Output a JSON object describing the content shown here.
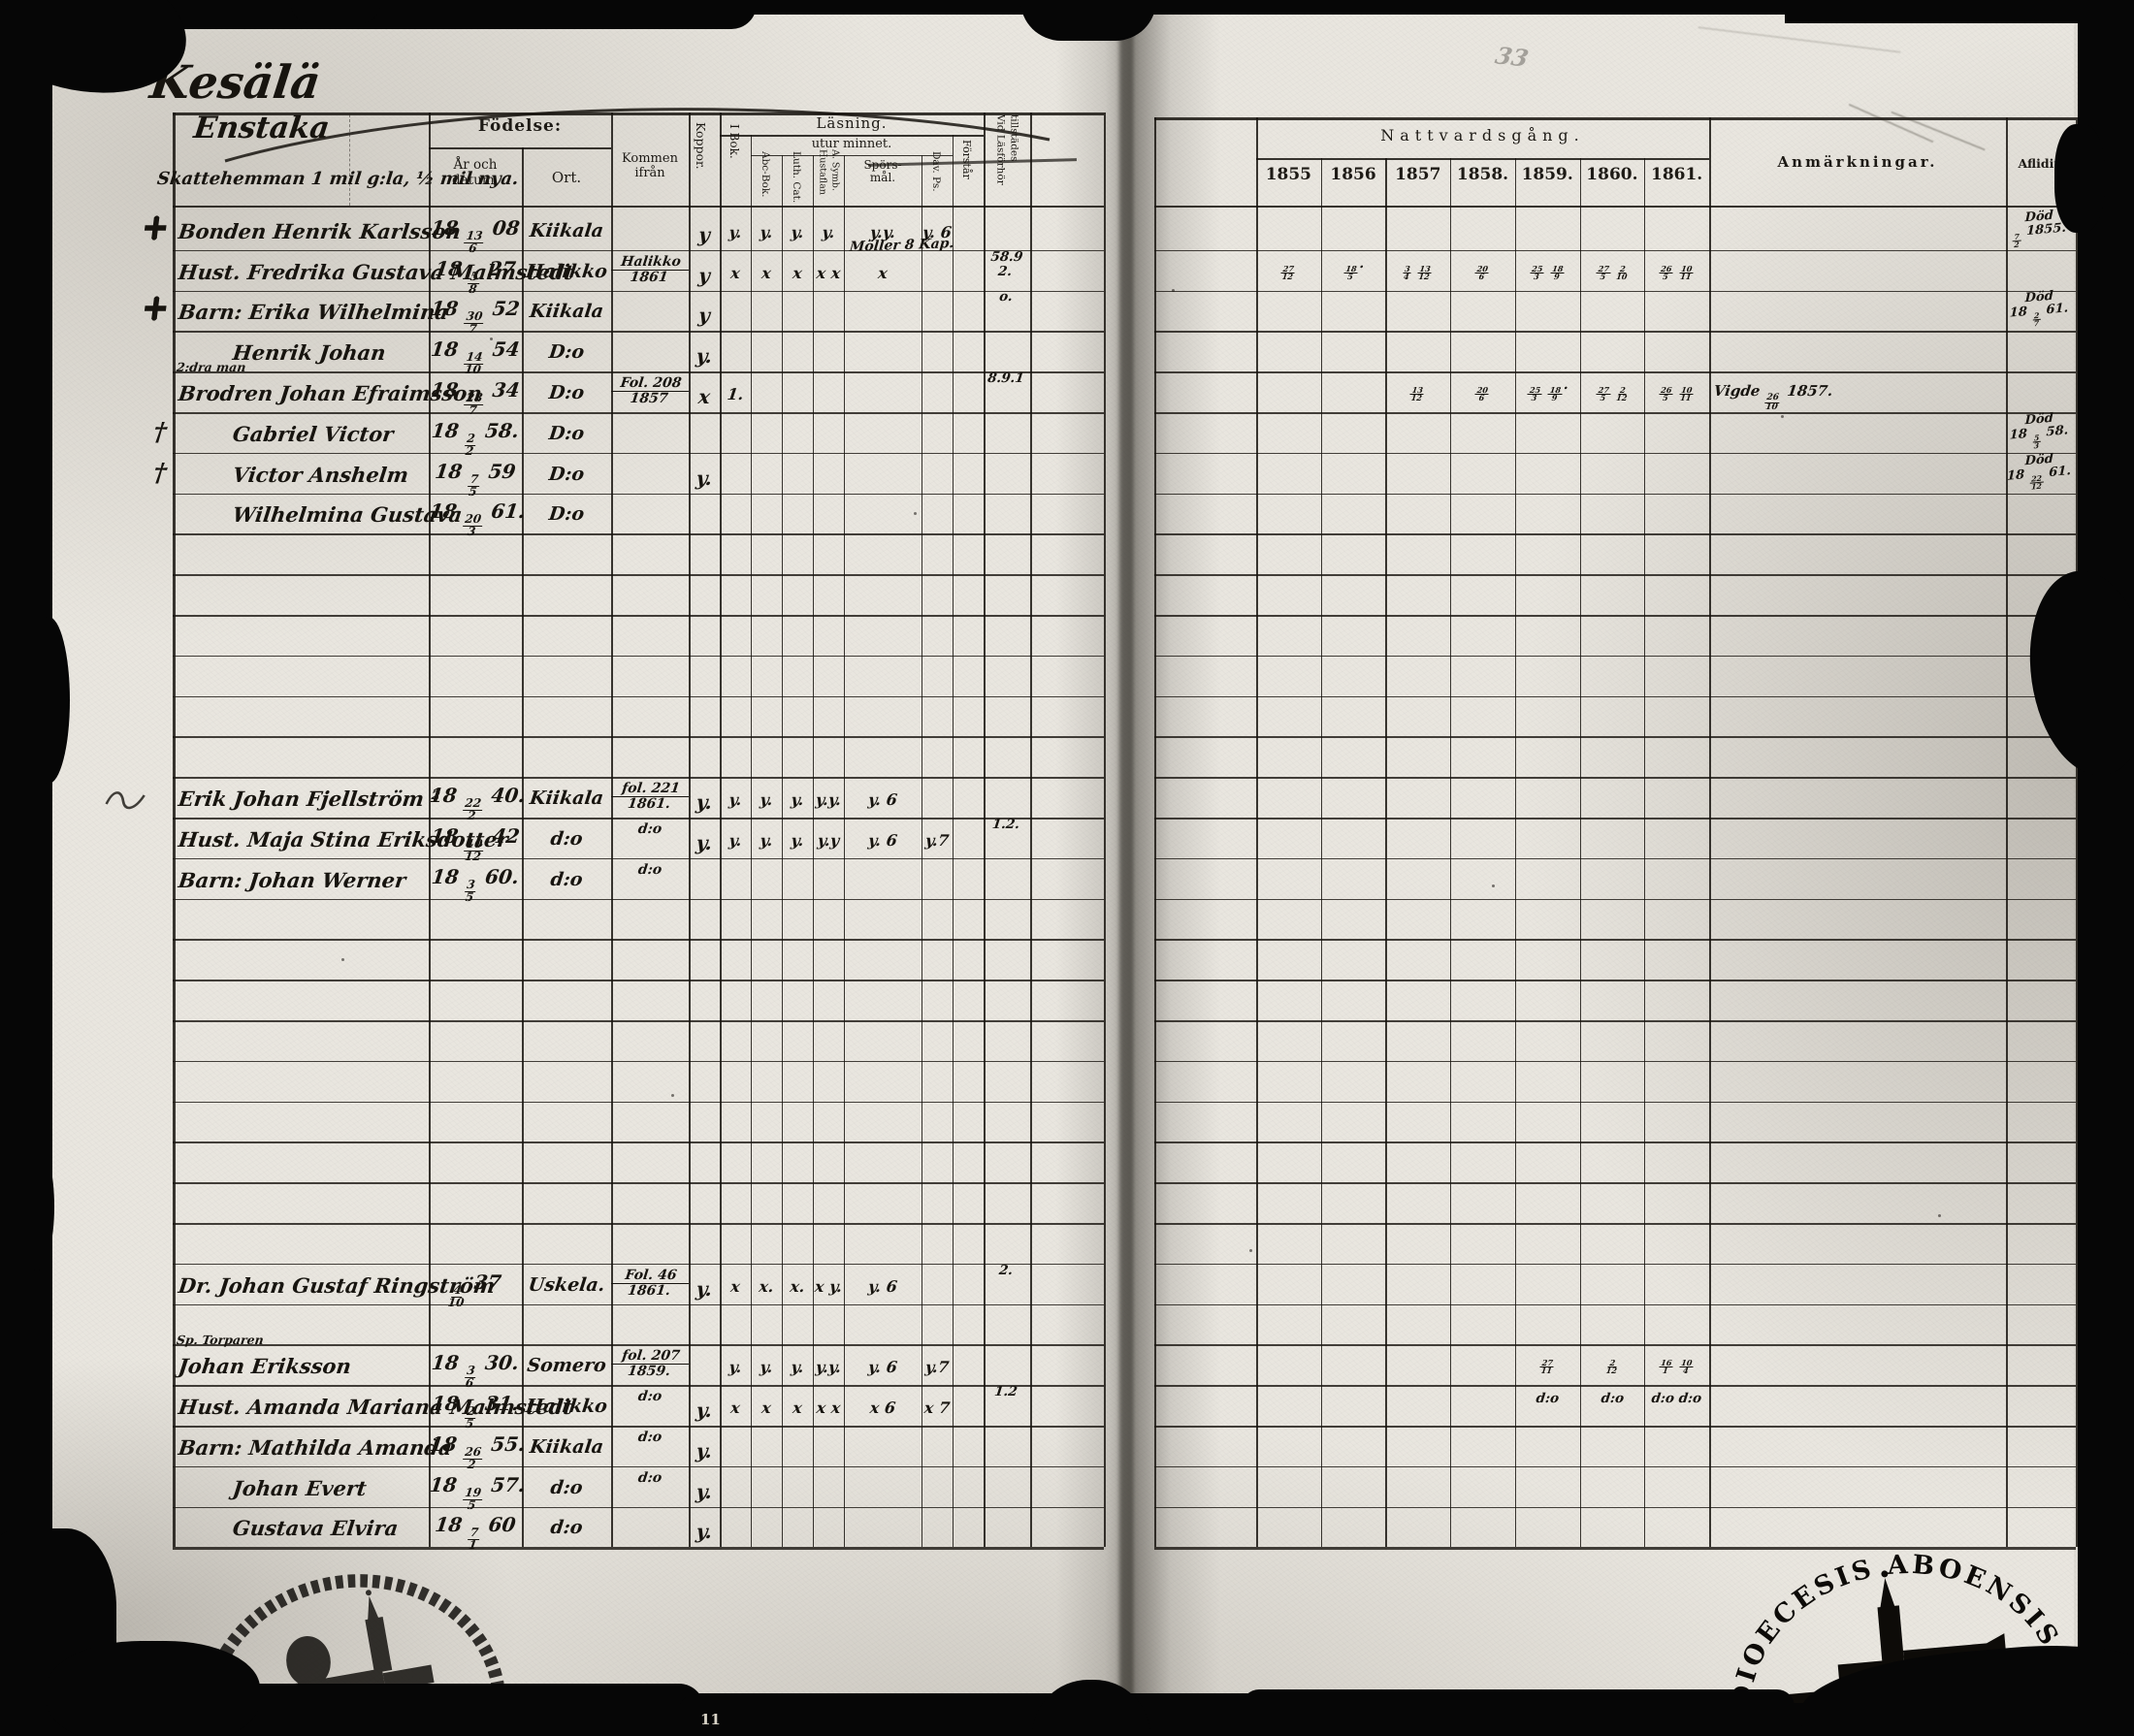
{
  "page": {
    "title": "Kesälä",
    "corner_mark": "33",
    "bottom_mark": "11",
    "section_heading": "Enstaka",
    "section_subheading": "Skattehemman 1 mil g:la, ½ mil nya."
  },
  "headers": {
    "fodelse": "Födelse:",
    "ar_och_datum": "År och datum.",
    "ort": "Ort.",
    "kommen_ifran": "Kommen ifrån",
    "koppor": "Koppor.",
    "lasning": "Läsning.",
    "utur_minnet": "utur minnet.",
    "i_bok": "I Bok.",
    "abc_bok": "Abc-Bok.",
    "luth_cat": "Luth. Cat.",
    "a_symb": "A. Symb.",
    "hustaflan": "Hustaflan",
    "sporsmal_1": "Spörs-",
    "sporsmal_2": "mål.",
    "dav_ps": "Dav. Ps.",
    "forstar": "Förstår",
    "vid_lasforhor_1": "Vid Läsförhör",
    "vid_lasforhor_2": "tillstädes",
    "nattvardsgang": "Nattvardsgång.",
    "years": [
      "1855",
      "1856",
      "1857",
      "1858.",
      "1859.",
      "1860.",
      "1861."
    ],
    "anmarkningar": "Anmärkningar.",
    "aflidit": "Aflidit."
  },
  "rows": [
    {
      "line": 0,
      "margin": "maltese-cross",
      "label": "Bonden",
      "name": "Henrik Karlsson",
      "date": "18 13/6 08",
      "ort": "Kiikala",
      "reading": {
        "koppor": "y",
        "ibok": "y.",
        "abc": "y.",
        "luth": "y.",
        "asymb": "y.",
        "spors": "y.y.",
        "davps": "y. 6"
      },
      "aflidit": "Död|7/2 1855."
    },
    {
      "line": 1,
      "label": "Hust.",
      "name": "Fredrika Gustava Malmstedt",
      "date": "18 5/8 27",
      "ort": "Halikko",
      "kommen": "Halikko|1861",
      "reading": {
        "koppor": "y",
        "ibok": "x",
        "abc": "x",
        "luth": "x",
        "asymb": "x x",
        "spors": "x",
        "note": "Möller 8 Kap."
      },
      "vidlas": "58.9|2.",
      "natt": [
        "27/12",
        "18/5.",
        "3/4 13/12",
        "20/6",
        "25/3 18/9",
        "27/5 2/10",
        "26/5 10/11"
      ]
    },
    {
      "line": 2,
      "margin": "maltese-cross",
      "label": "Barn:",
      "name": "Erika Wilhelmina",
      "date": "18 30/7 52",
      "ort": "Kiikala",
      "reading": {
        "koppor": "y"
      },
      "vidlas": "o.",
      "aflidit": "Död|18 2/7 61."
    },
    {
      "line": 3,
      "name": "Henrik Johan",
      "date": "18 14/10 54",
      "ort": "D:o",
      "reading": {
        "koppor": "y."
      }
    },
    {
      "line": 4,
      "above": "2:dra man",
      "label": "Brodren",
      "name": "Johan Efraimsson",
      "date": "18 28/7 34",
      "ort": "D:o",
      "kommen": "Fol. 208|1857",
      "reading": {
        "koppor": "x",
        "ibok": "1."
      },
      "vidlas": "8.9.1",
      "natt": [
        "",
        "",
        "13/12",
        "20/6",
        "25/3 18/9.",
        "27/5 2/12",
        "26/5 10/11"
      ],
      "anm": "Vigde 26/10 1857."
    },
    {
      "line": 5,
      "margin": "dagger",
      "name": "Gabriel Victor",
      "date": "18 2/2 58.",
      "ort": "D:o",
      "aflidit": "Död|18 5/3 58."
    },
    {
      "line": 6,
      "margin": "dagger",
      "name": "Victor Anshelm",
      "date": "18 7/5 59",
      "ort": "D:o",
      "reading": {
        "koppor": "y."
      },
      "aflidit": "Död|18 22/12 61."
    },
    {
      "line": 7,
      "name": "Wilhelmina Gustava",
      "date": "18 20/3 61.",
      "ort": "D:o"
    },
    {
      "line": 14,
      "margin": "scribble",
      "label": "",
      "name": "Erik Johan Fjellström ²",
      "date": "18 22/2 40.",
      "ort": "Kiikala",
      "kommen": "fol. 221|1861.",
      "reading": {
        "koppor": "y.",
        "ibok": "y.",
        "abc": "y.",
        "luth": "y.",
        "asymb": "y.y.",
        "spors": "y. 6"
      }
    },
    {
      "line": 15,
      "label": "Hust.",
      "name": "Maja Stina Eriksdotter",
      "date": "18 10/12 42",
      "ort": "d:o",
      "kommen": "d:o",
      "reading": {
        "koppor": "y.",
        "ibok": "y.",
        "abc": "y.",
        "luth": "y.",
        "asymb": "y.y",
        "spors": "y. 6",
        "davps": "y.7"
      },
      "vidlas": "1.2."
    },
    {
      "line": 16,
      "label": "Barn:",
      "name": "Johan Werner",
      "date": "18 3/5 60.",
      "ort": "d:o",
      "kommen": "d:o"
    },
    {
      "line": 26,
      "label": "Dr.",
      "name": "Johan Gustaf Ringström",
      "date": "4/10 37",
      "ort": "Uskela.",
      "kommen": "Fol. 46|1861.",
      "reading": {
        "koppor": "y.",
        "ibok": "x",
        "abc": "x.",
        "luth": "x.",
        "asymb": "x y.",
        "spors": "y. 6"
      },
      "vidlas": "2."
    },
    {
      "line": 28,
      "above": "Sp. Torparen",
      "label": "",
      "name": "Johan Eriksson",
      "date": "18 3/6 30.",
      "ort": "Somero",
      "kommen": "fol. 207|1859.",
      "reading": {
        "ibok": "y.",
        "abc": "y.",
        "luth": "y.",
        "asymb": "y.y.",
        "spors": "y. 6",
        "davps": "y.7"
      },
      "natt": [
        "",
        "",
        "",
        "",
        "27/11",
        "2/12",
        "16/1 10/4"
      ]
    },
    {
      "line": 29,
      "label": "Hust.",
      "name": "Amanda Mariana Malmstedt",
      "date": "18 2/5 31.",
      "ort": "Halikko",
      "kommen": "d:o",
      "reading": {
        "koppor": "y.",
        "ibok": "x",
        "abc": "x",
        "luth": "x",
        "asymb": "x x",
        "spors": "x 6",
        "davps": "x 7"
      },
      "vidlas": "1.2",
      "natt": [
        "",
        "",
        "",
        "",
        "d:o",
        "d:o",
        "d:o d:o"
      ]
    },
    {
      "line": 30,
      "label": "Barn:",
      "name": "Mathilda Amanda",
      "date": "18 26/2 55.",
      "ort": "Kiikala",
      "kommen": "d:o",
      "reading": {
        "koppor": "y."
      }
    },
    {
      "line": 31,
      "name": "Johan Evert",
      "date": "18 19/5 57.",
      "ort": "d:o",
      "kommen": "d:o",
      "reading": {
        "koppor": "y."
      }
    },
    {
      "line": 32,
      "name": "Gustava Elvira",
      "date": "18 7/1 60",
      "ort": "d:o",
      "reading": {
        "koppor": "y."
      }
    }
  ],
  "stamps": {
    "right_text": "DIOECESIS ABOENSIS"
  }
}
